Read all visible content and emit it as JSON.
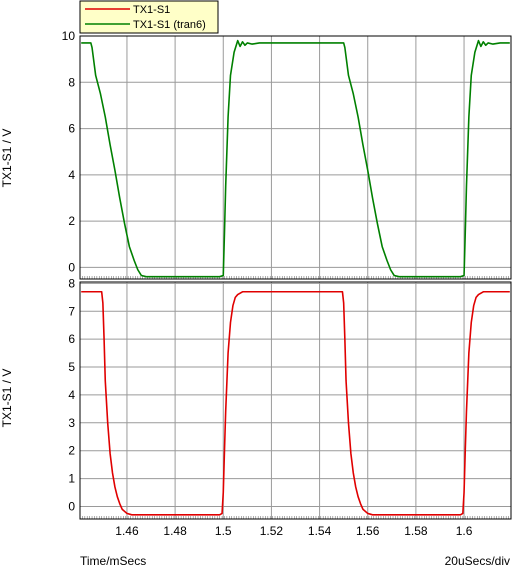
{
  "legend": {
    "entries": [
      {
        "label": "TX1-S1",
        "color": "#e00000"
      },
      {
        "label": "TX1-S1 (tran6)",
        "color": "#008000"
      }
    ]
  },
  "footer": {
    "x_axis_label": "Time/mSecs",
    "x_scale_label": "20uSecs/div"
  },
  "chart_data": [
    {
      "type": "line",
      "panel": "top",
      "ylabel": "TX1-S1 / V",
      "xlim": [
        1.4405,
        1.6195
      ],
      "ylim": [
        -0.5,
        10
      ],
      "yticks": [
        0,
        2,
        4,
        6,
        8,
        10
      ],
      "grid": true,
      "series": [
        {
          "name": "TX1-S1 (tran6)",
          "color": "#008000",
          "points": [
            [
              1.441,
              9.7
            ],
            [
              1.445,
              9.7
            ],
            [
              1.4455,
              9.5
            ],
            [
              1.447,
              8.3
            ],
            [
              1.449,
              7.5
            ],
            [
              1.451,
              6.5
            ],
            [
              1.453,
              5.3
            ],
            [
              1.455,
              4.2
            ],
            [
              1.457,
              3.0
            ],
            [
              1.459,
              1.9
            ],
            [
              1.461,
              0.9
            ],
            [
              1.463,
              0.3
            ],
            [
              1.4645,
              -0.1
            ],
            [
              1.466,
              -0.35
            ],
            [
              1.468,
              -0.4
            ],
            [
              1.4985,
              -0.4
            ],
            [
              1.5,
              -0.35
            ],
            [
              1.5005,
              1.5
            ],
            [
              1.501,
              3.5
            ],
            [
              1.502,
              6.5
            ],
            [
              1.503,
              8.3
            ],
            [
              1.5045,
              9.3
            ],
            [
              1.506,
              9.8
            ],
            [
              1.507,
              9.55
            ],
            [
              1.508,
              9.75
            ],
            [
              1.509,
              9.6
            ],
            [
              1.51,
              9.7
            ],
            [
              1.512,
              9.65
            ],
            [
              1.515,
              9.7
            ],
            [
              1.55,
              9.7
            ],
            [
              1.5505,
              9.5
            ],
            [
              1.552,
              8.3
            ],
            [
              1.554,
              7.5
            ],
            [
              1.556,
              6.5
            ],
            [
              1.558,
              5.3
            ],
            [
              1.56,
              4.2
            ],
            [
              1.562,
              3.0
            ],
            [
              1.564,
              1.9
            ],
            [
              1.566,
              0.9
            ],
            [
              1.568,
              0.3
            ],
            [
              1.5695,
              -0.1
            ],
            [
              1.571,
              -0.35
            ],
            [
              1.573,
              -0.4
            ],
            [
              1.5985,
              -0.4
            ],
            [
              1.6,
              -0.35
            ],
            [
              1.6005,
              1.5
            ],
            [
              1.601,
              3.5
            ],
            [
              1.602,
              6.5
            ],
            [
              1.603,
              8.3
            ],
            [
              1.6045,
              9.3
            ],
            [
              1.606,
              9.8
            ],
            [
              1.607,
              9.55
            ],
            [
              1.608,
              9.75
            ],
            [
              1.609,
              9.6
            ],
            [
              1.61,
              9.7
            ],
            [
              1.612,
              9.65
            ],
            [
              1.615,
              9.7
            ],
            [
              1.619,
              9.7
            ]
          ]
        }
      ]
    },
    {
      "type": "line",
      "panel": "bottom",
      "ylabel": "TX1-S1 / V",
      "xlim": [
        1.4405,
        1.6195
      ],
      "ylim": [
        -0.45,
        8.05
      ],
      "yticks": [
        0,
        1,
        2,
        3,
        4,
        5,
        6,
        7,
        8
      ],
      "xticks": [
        1.46,
        1.48,
        1.5,
        1.52,
        1.54,
        1.56,
        1.58,
        1.6
      ],
      "grid": true,
      "series": [
        {
          "name": "TX1-S1",
          "color": "#e00000",
          "points": [
            [
              1.441,
              7.7
            ],
            [
              1.4495,
              7.7
            ],
            [
              1.45,
              7.3
            ],
            [
              1.4505,
              6.0
            ],
            [
              1.451,
              4.5
            ],
            [
              1.452,
              3.0
            ],
            [
              1.453,
              1.9
            ],
            [
              1.454,
              1.2
            ],
            [
              1.455,
              0.7
            ],
            [
              1.456,
              0.35
            ],
            [
              1.457,
              0.1
            ],
            [
              1.458,
              -0.1
            ],
            [
              1.46,
              -0.25
            ],
            [
              1.462,
              -0.3
            ],
            [
              1.4985,
              -0.3
            ],
            [
              1.4995,
              -0.25
            ],
            [
              1.5,
              0.5
            ],
            [
              1.5005,
              2.0
            ],
            [
              1.501,
              3.4
            ],
            [
              1.502,
              5.5
            ],
            [
              1.503,
              6.6
            ],
            [
              1.504,
              7.2
            ],
            [
              1.505,
              7.5
            ],
            [
              1.506,
              7.6
            ],
            [
              1.508,
              7.7
            ],
            [
              1.5495,
              7.7
            ],
            [
              1.55,
              7.3
            ],
            [
              1.5505,
              6.0
            ],
            [
              1.551,
              4.5
            ],
            [
              1.552,
              3.0
            ],
            [
              1.553,
              1.9
            ],
            [
              1.554,
              1.2
            ],
            [
              1.555,
              0.7
            ],
            [
              1.556,
              0.35
            ],
            [
              1.557,
              0.1
            ],
            [
              1.558,
              -0.1
            ],
            [
              1.56,
              -0.25
            ],
            [
              1.562,
              -0.3
            ],
            [
              1.5985,
              -0.3
            ],
            [
              1.5995,
              -0.25
            ],
            [
              1.6,
              0.5
            ],
            [
              1.6005,
              2.0
            ],
            [
              1.601,
              3.4
            ],
            [
              1.602,
              5.5
            ],
            [
              1.603,
              6.6
            ],
            [
              1.604,
              7.2
            ],
            [
              1.605,
              7.5
            ],
            [
              1.606,
              7.6
            ],
            [
              1.608,
              7.7
            ],
            [
              1.619,
              7.7
            ]
          ]
        }
      ]
    }
  ]
}
